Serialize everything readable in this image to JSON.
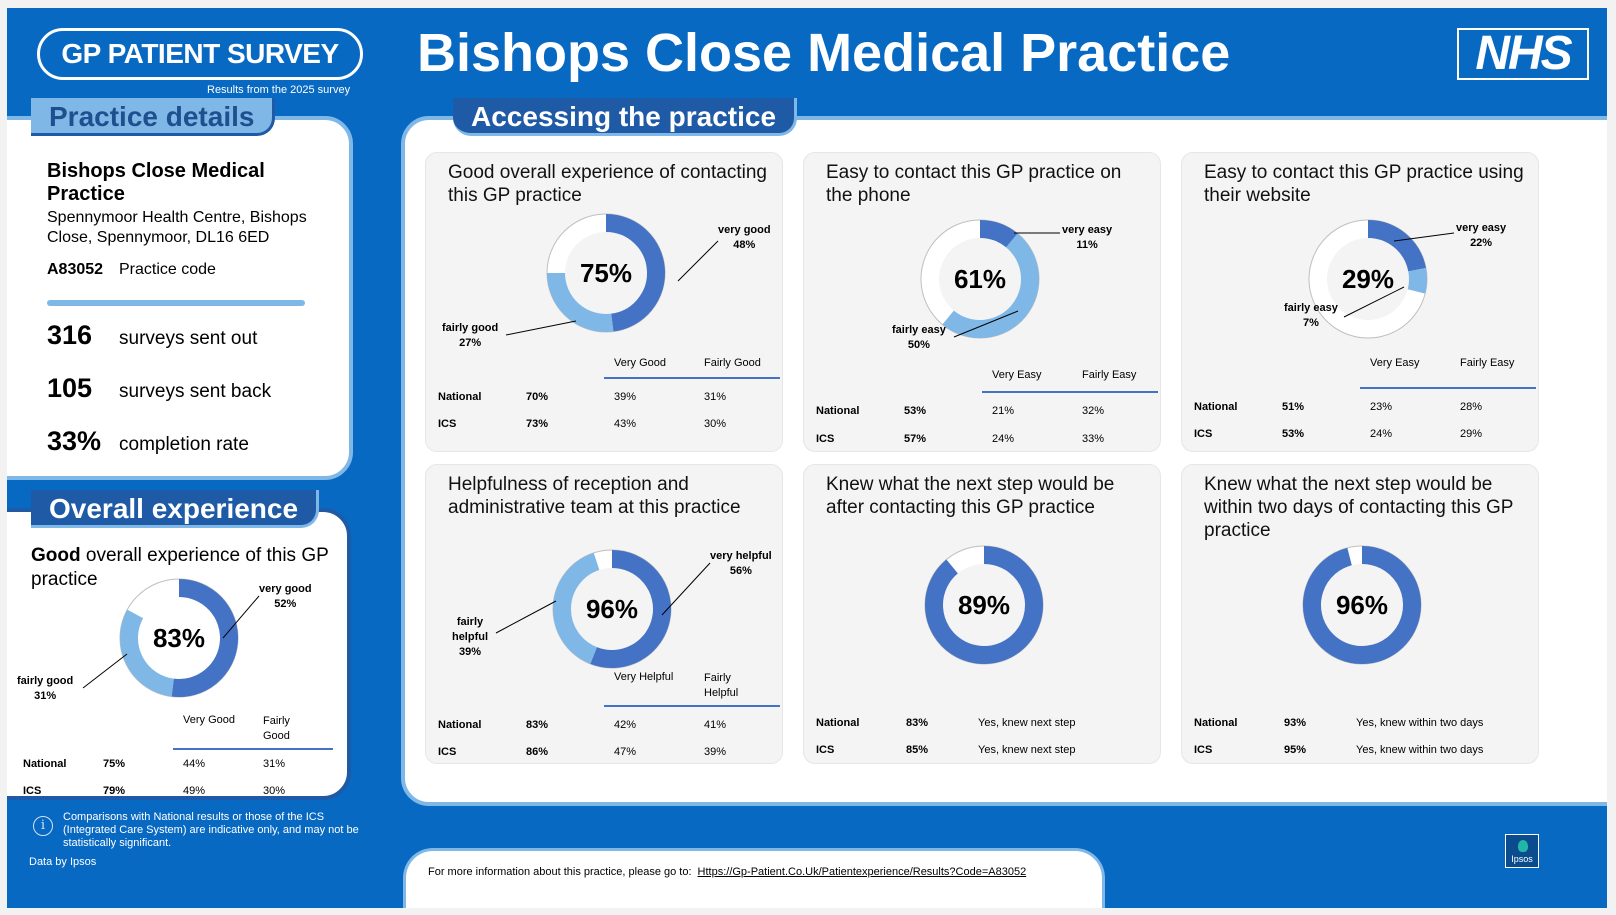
{
  "header": {
    "logo": "GP PATIENT SURVEY",
    "subtitle": "Results from the 2025 survey",
    "title": "Bishops Close Medical Practice",
    "nhs_logo": "NHS"
  },
  "practice_details": {
    "tab": "Practice details",
    "name": "Bishops Close Medical Practice",
    "address": "Spennymoor Health Centre, Bishops Close, Spennymoor, DL16 6ED",
    "code": "A83052",
    "code_label": "Practice code",
    "stats": [
      {
        "value": "316",
        "label": "surveys sent out"
      },
      {
        "value": "105",
        "label": "surveys sent back"
      },
      {
        "value": "33%",
        "label": "completion rate"
      }
    ]
  },
  "overall": {
    "tab": "Overall experience",
    "title_bold": "Good",
    "title_rest": " overall experience of this GP practice",
    "center": "83%",
    "label1": {
      "name": "very good",
      "value": "52%"
    },
    "label2": {
      "name": "fairly good",
      "value": "31%"
    },
    "col1": "Very Good",
    "col2": "Fairly Good",
    "rows": [
      {
        "name": "National",
        "total": "75%",
        "a": "44%",
        "b": "31%"
      },
      {
        "name": "ICS",
        "total": "79%",
        "a": "49%",
        "b": "30%"
      }
    ]
  },
  "accessing": {
    "tab": "Accessing the practice",
    "panels": [
      {
        "title": "Good overall experience of contacting this GP practice",
        "center": "75%",
        "l1n": "very good",
        "l1v": "48%",
        "l2n": "fairly good",
        "l2v": "27%",
        "col1": "Very Good",
        "col2": "Fairly Good",
        "rows": [
          {
            "name": "National",
            "total": "70%",
            "a": "39%",
            "b": "31%"
          },
          {
            "name": "ICS",
            "total": "73%",
            "a": "43%",
            "b": "30%"
          }
        ]
      },
      {
        "title": "Easy to contact this GP practice on the phone",
        "center": "61%",
        "l1n": "very easy",
        "l1v": "11%",
        "l2n": "fairly easy",
        "l2v": "50%",
        "col1": "Very Easy",
        "col2": "Fairly Easy",
        "rows": [
          {
            "name": "National",
            "total": "53%",
            "a": "21%",
            "b": "32%"
          },
          {
            "name": "ICS",
            "total": "57%",
            "a": "24%",
            "b": "33%"
          }
        ]
      },
      {
        "title": "Easy to contact this GP practice using their website",
        "center": "29%",
        "l1n": "very easy",
        "l1v": "22%",
        "l2n": "fairly easy",
        "l2v": "7%",
        "col1": "Very Easy",
        "col2": "Fairly Easy",
        "rows": [
          {
            "name": "National",
            "total": "51%",
            "a": "23%",
            "b": "28%"
          },
          {
            "name": "ICS",
            "total": "53%",
            "a": "24%",
            "b": "29%"
          }
        ]
      },
      {
        "title": "Helpfulness of reception and administrative team at this practice",
        "center": "96%",
        "l1n": "very helpful",
        "l1v": "56%",
        "l2n": "fairly helpful",
        "l2v": "39%",
        "col1": "Very Helpful",
        "col2": "Fairly Helpful",
        "rows": [
          {
            "name": "National",
            "total": "83%",
            "a": "42%",
            "b": "41%"
          },
          {
            "name": "ICS",
            "total": "86%",
            "a": "47%",
            "b": "39%"
          }
        ]
      },
      {
        "title": "Knew what the next step would be after contacting this GP practice",
        "center": "89%",
        "rows": [
          {
            "name": "National",
            "total": "83%",
            "a": "Yes, knew next step"
          },
          {
            "name": "ICS",
            "total": "85%",
            "a": "Yes, knew next step"
          }
        ]
      },
      {
        "title": "Knew what the next step would be within two days of contacting this GP practice",
        "center": "96%",
        "rows": [
          {
            "name": "National",
            "total": "93%",
            "a": "Yes, knew within two days"
          },
          {
            "name": "ICS",
            "total": "95%",
            "a": "Yes, knew within two days"
          }
        ]
      }
    ]
  },
  "chart_data": [
    {
      "type": "pie",
      "title": "Good overall experience of this GP practice",
      "categories": [
        "very good",
        "fairly good"
      ],
      "values": [
        52,
        31
      ]
    },
    {
      "type": "pie",
      "title": "Good overall experience of contacting this GP practice",
      "categories": [
        "very good",
        "fairly good"
      ],
      "values": [
        48,
        27
      ]
    },
    {
      "type": "pie",
      "title": "Easy to contact this GP practice on the phone",
      "categories": [
        "very easy",
        "fairly easy"
      ],
      "values": [
        11,
        50
      ]
    },
    {
      "type": "pie",
      "title": "Easy to contact this GP practice using their website",
      "categories": [
        "very easy",
        "fairly easy"
      ],
      "values": [
        22,
        7
      ]
    },
    {
      "type": "pie",
      "title": "Helpfulness of reception and administrative team at this practice",
      "categories": [
        "very helpful",
        "fairly helpful"
      ],
      "values": [
        56,
        39
      ]
    },
    {
      "type": "pie",
      "title": "Knew what the next step would be after contacting this GP practice",
      "values": [
        89
      ]
    },
    {
      "type": "pie",
      "title": "Knew what the next step would be within two days of contacting this GP practice",
      "values": [
        96
      ]
    }
  ],
  "colors": {
    "dark": "#4472c4",
    "light": "#7fb7e6",
    "frame": "#0869c3"
  },
  "footer": {
    "note": "Comparisons with National results or those of the ICS (Integrated Care System) are indicative only, and may not be statistically significant.",
    "data_by": "Data by Ipsos",
    "more_info": "For more information about this practice, please go to:",
    "link": "Https://Gp-Patient.Co.Uk/Patientexperience/Results?Code=A83052",
    "ipsos": "Ipsos"
  }
}
